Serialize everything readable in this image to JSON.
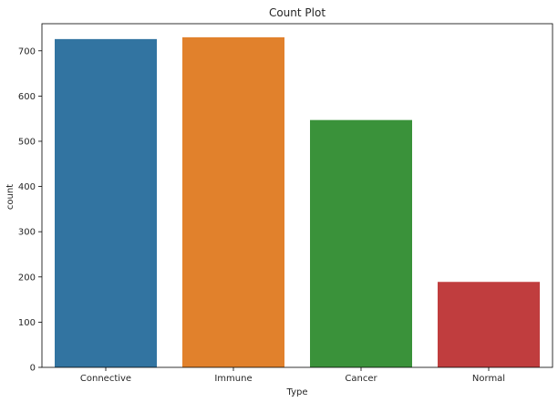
{
  "chart_data": {
    "type": "bar",
    "title": "Count Plot",
    "xlabel": "Type",
    "ylabel": "count",
    "categories": [
      "Connective",
      "Immune",
      "Cancer",
      "Normal"
    ],
    "values": [
      726,
      730,
      547,
      189
    ],
    "colors": [
      "#3274a1",
      "#e1812c",
      "#3a923a",
      "#c03d3e"
    ],
    "ylim": [
      0,
      760
    ],
    "yticks": [
      0,
      100,
      200,
      300,
      400,
      500,
      600,
      700
    ],
    "grid": false,
    "legend": "none"
  }
}
